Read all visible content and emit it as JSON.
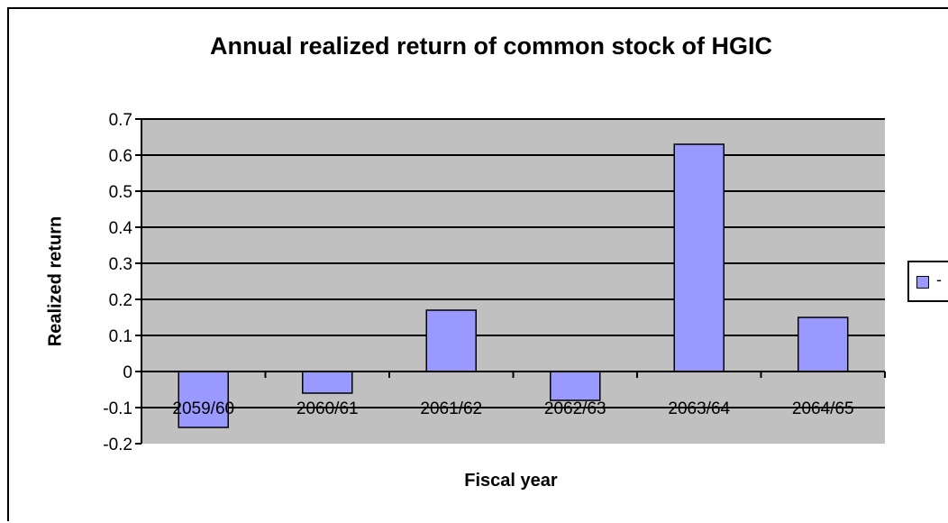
{
  "chart_data": {
    "type": "bar",
    "title": "Annual realized return of common stock of HGIC",
    "xlabel": "Fiscal year",
    "ylabel": "Realized return",
    "categories": [
      "2059/60",
      "2060/61",
      "2061/62",
      "2062/63",
      "2063/64",
      "2064/65"
    ],
    "series": [
      {
        "name": "-",
        "values": [
          -0.155,
          -0.06,
          0.17,
          -0.08,
          0.63,
          0.15
        ]
      }
    ],
    "ylim": [
      -0.2,
      0.7
    ],
    "yticks": [
      "0.7",
      "0.6",
      "0.5",
      "0.4",
      "0.3",
      "0.2",
      "0.1",
      "0",
      "-0.1",
      "-0.2"
    ],
    "grid": true,
    "legend_position": "right",
    "colors": {
      "bar": "#9999ff",
      "plot_background": "#c0c0c0",
      "bar_border": "#000000"
    }
  }
}
